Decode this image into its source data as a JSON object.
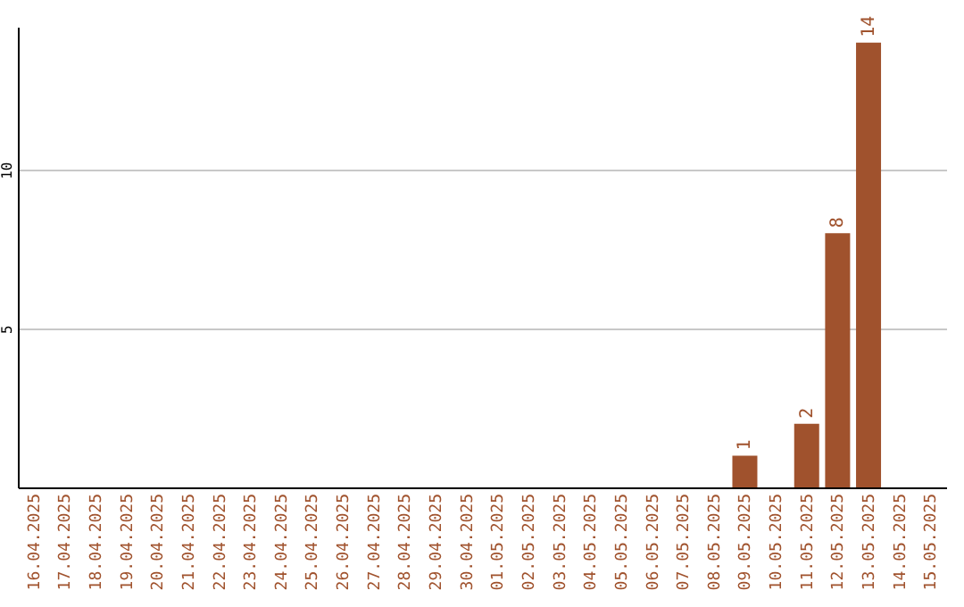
{
  "chart_data": {
    "type": "bar",
    "categories": [
      "16.04.2025",
      "17.04.2025",
      "18.04.2025",
      "19.04.2025",
      "20.04.2025",
      "21.04.2025",
      "22.04.2025",
      "23.04.2025",
      "24.04.2025",
      "25.04.2025",
      "26.04.2025",
      "27.04.2025",
      "28.04.2025",
      "29.04.2025",
      "30.04.2025",
      "01.05.2025",
      "02.05.2025",
      "03.05.2025",
      "04.05.2025",
      "05.05.2025",
      "06.05.2025",
      "07.05.2025",
      "08.05.2025",
      "09.05.2025",
      "10.05.2025",
      "11.05.2025",
      "12.05.2025",
      "13.05.2025",
      "14.05.2025",
      "15.05.2025"
    ],
    "values": [
      null,
      null,
      null,
      null,
      null,
      null,
      null,
      null,
      null,
      null,
      null,
      null,
      null,
      null,
      null,
      null,
      null,
      null,
      null,
      null,
      null,
      null,
      null,
      1,
      null,
      2,
      8,
      14,
      null,
      null
    ],
    "color": "#a0522d",
    "ylim": [
      0,
      14.5
    ],
    "yticks": [
      5,
      10
    ],
    "grid": "y",
    "data_labels": true
  }
}
